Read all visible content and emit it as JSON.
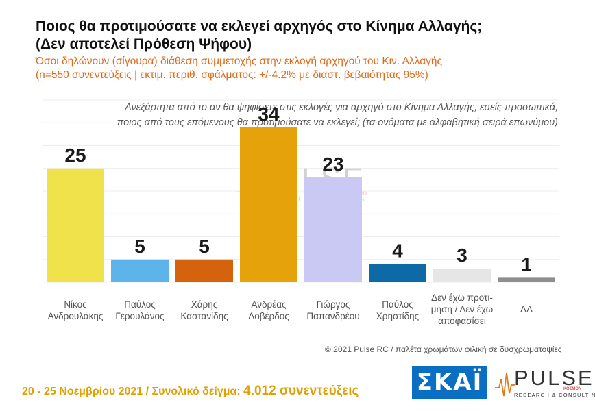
{
  "header": {
    "title_line1": "Ποιος θα προτιμούσατε να εκλεγεί αρχηγός στο Κίνημα Αλλαγής;",
    "title_line2": "(Δεν αποτελεί Πρόθεση Ψήφου)",
    "subtitle_line1": "Όσοι δηλώνουν (σίγουρα) διάθεση συμμετοχής στην εκλογή αρχηγού του Κιν. Αλλαγής",
    "subtitle_line2": "(n=550 συνεντεύξεις | εκτιμ. περιθ. σφάλματος: +/-4.2% με διαστ. βεβαιότητας 95%)"
  },
  "question": {
    "line1": "Ανεξάρτητα από το αν θα ψηφίσετε στις εκλογές για αρχηγό στο Κίνημα Αλλαγής, εσείς προσωπικά,",
    "line2": "ποιος από τους επόμενους θα προτιμούσατε να εκλεγεί; (τα ονόματα με αλφαβητική σειρά επωνύμου)"
  },
  "chart_data": {
    "type": "bar",
    "categories": [
      [
        "Νίκος",
        "Ανδρουλάκης"
      ],
      [
        "Παύλος",
        "Γερουλάνος"
      ],
      [
        "Χάρης",
        "Καστανίδης"
      ],
      [
        "Ανδρέας",
        "Λοβέρδος"
      ],
      [
        "Γιώργος",
        "Παπανδρέου"
      ],
      [
        "Παύλος",
        "Χρηστίδης"
      ],
      [
        "Δεν έχω προτι-",
        "μηση / Δεν έχω",
        "αποφασίσει"
      ],
      [
        "ΔΑ"
      ]
    ],
    "values": [
      25,
      5,
      5,
      34,
      23,
      4,
      3,
      1
    ],
    "colors": [
      "#efe24a",
      "#5db4ea",
      "#d5620c",
      "#e6a20a",
      "#c9c9f4",
      "#0e6aa6",
      "#e6e6e6",
      "#8e8e8e"
    ],
    "ylim": [
      0,
      40
    ],
    "grid": true
  },
  "footer": {
    "note": "© 2021 Pulse RC   /   παλέτα χρωμάτων φιλική σε δυσχρωματοψίες",
    "date_text": "20 - 25  Νοεμβρίου 2021  /  Συνολικό δείγμα: ",
    "sample_text": "4.012 συνεντεύξεις"
  },
  "logos": {
    "skai": "ΣΚΑΪ",
    "pulse": "PULSE",
    "pulse_sub": "RESEARCH & CONSULTING",
    "pulse_kosmon": "ΚΟΣΜΟΝ"
  }
}
